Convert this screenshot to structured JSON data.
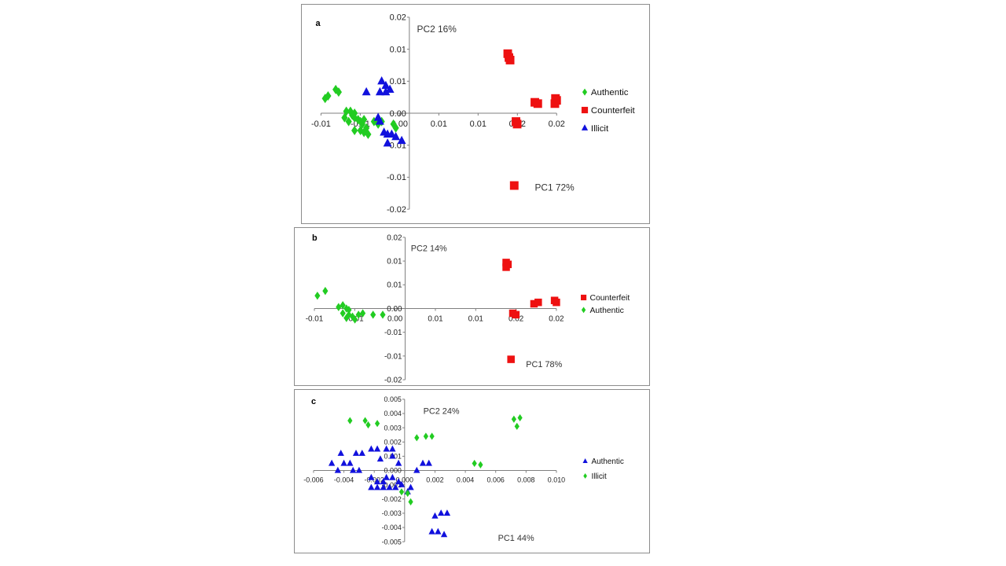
{
  "colors": {
    "Authentic": "#22cc22",
    "Counterfeit": "#ee1111",
    "Illicit": "#1111dd"
  },
  "chart_data": [
    {
      "panel": "a",
      "type": "scatter",
      "pc_x_label": "PC1  72%",
      "pc_y_label": "PC2  16%",
      "xticks": [
        "-0.01",
        "-0.01",
        "0.00",
        "0.01",
        "0.01",
        "0.02",
        "0.02"
      ],
      "yticks": [
        "0.02",
        "0.01",
        "0.01",
        "0.00",
        "-0.01",
        "-0.01",
        "-0.02"
      ],
      "xlim": [
        -0.015,
        0.025
      ],
      "ylim": [
        -0.015,
        0.015
      ],
      "legend_position": "right",
      "series": [
        {
          "name": "Authentic",
          "marker": "diamond",
          "color_key": "Authentic",
          "points": [
            [
              -0.0143,
              0.0023
            ],
            [
              -0.0138,
              0.0027
            ],
            [
              -0.0125,
              0.0037
            ],
            [
              -0.012,
              0.0033
            ],
            [
              -0.0107,
              0.0003
            ],
            [
              -0.01,
              0.0003
            ],
            [
              -0.0097,
              -0.0003
            ],
            [
              -0.0093,
              0.0
            ],
            [
              -0.011,
              -0.0007
            ],
            [
              -0.0103,
              -0.0013
            ],
            [
              -0.0093,
              -0.0007
            ],
            [
              -0.0087,
              -0.001
            ],
            [
              -0.0083,
              -0.0013
            ],
            [
              -0.008,
              -0.0017
            ],
            [
              -0.0077,
              -0.001
            ],
            [
              -0.0073,
              -0.0023
            ],
            [
              -0.0093,
              -0.0027
            ],
            [
              -0.0083,
              -0.0027
            ],
            [
              -0.0077,
              -0.003
            ],
            [
              -0.007,
              -0.0033
            ],
            [
              -0.006,
              -0.0013
            ],
            [
              -0.0053,
              -0.0017
            ],
            [
              -0.0047,
              -0.0013
            ],
            [
              -0.0027,
              -0.0017
            ],
            [
              -0.0023,
              -0.0023
            ]
          ]
        },
        {
          "name": "Counterfeit",
          "marker": "square",
          "color_key": "Counterfeit",
          "points": [
            [
              0.0167,
              0.0093
            ],
            [
              0.0169,
              0.0087
            ],
            [
              0.0171,
              0.0083
            ],
            [
              0.0181,
              -0.0013
            ],
            [
              0.0183,
              -0.0017
            ],
            [
              0.0213,
              0.0017
            ],
            [
              0.0218,
              0.0015
            ],
            [
              0.0248,
              0.0023
            ],
            [
              0.025,
              0.002
            ],
            [
              0.0247,
              0.0015
            ],
            [
              0.0178,
              -0.0113
            ]
          ]
        },
        {
          "name": "Illicit",
          "marker": "triangle",
          "color_key": "Illicit",
          "points": [
            [
              -0.0047,
              0.005
            ],
            [
              -0.004,
              0.0043
            ],
            [
              -0.0033,
              0.0037
            ],
            [
              -0.005,
              0.0033
            ],
            [
              -0.004,
              0.0033
            ],
            [
              -0.0073,
              0.0033
            ],
            [
              -0.0053,
              -0.0007
            ],
            [
              -0.005,
              -0.0013
            ],
            [
              -0.0043,
              -0.003
            ],
            [
              -0.0037,
              -0.0033
            ],
            [
              -0.003,
              -0.0033
            ],
            [
              -0.0037,
              -0.0047
            ],
            [
              -0.0023,
              -0.0037
            ],
            [
              -0.0013,
              -0.0043
            ]
          ]
        }
      ]
    },
    {
      "panel": "b",
      "type": "scatter",
      "pc_x_label": "PC1  78%",
      "pc_y_label": "PC2  14%",
      "xticks": [
        "-0.01",
        "-0.01",
        "0.00",
        "0.01",
        "0.01",
        "0.02",
        "0.02"
      ],
      "yticks": [
        "0.02",
        "0.01",
        "0.01",
        "0.00",
        "-0.01",
        "-0.01",
        "-0.02"
      ],
      "xlim": [
        -0.015,
        0.025
      ],
      "ylim": [
        -0.015,
        0.015
      ],
      "legend_position": "right",
      "series": [
        {
          "name": "Counterfeit",
          "marker": "square",
          "color_key": "Counterfeit",
          "points": [
            [
              0.0167,
              0.0097
            ],
            [
              0.017,
              0.0093
            ],
            [
              0.0167,
              0.0087
            ],
            [
              0.0183,
              -0.0013
            ],
            [
              0.0178,
              -0.001
            ],
            [
              0.0213,
              0.001
            ],
            [
              0.022,
              0.0013
            ],
            [
              0.0247,
              0.0017
            ],
            [
              0.025,
              0.0013
            ],
            [
              0.0175,
              -0.0107
            ]
          ]
        },
        {
          "name": "Authentic",
          "marker": "diamond",
          "color_key": "Authentic",
          "points": [
            [
              -0.0145,
              0.0027
            ],
            [
              -0.0132,
              0.0037
            ],
            [
              -0.011,
              0.0003
            ],
            [
              -0.0103,
              0.0007
            ],
            [
              -0.0097,
              0.0
            ],
            [
              -0.0093,
              -0.0003
            ],
            [
              -0.0103,
              -0.001
            ],
            [
              -0.0093,
              -0.0013
            ],
            [
              -0.0087,
              -0.0017
            ],
            [
              -0.0077,
              -0.0013
            ],
            [
              -0.0097,
              -0.002
            ],
            [
              -0.0083,
              -0.0023
            ],
            [
              -0.007,
              -0.001
            ],
            [
              -0.0053,
              -0.0013
            ],
            [
              -0.0037,
              -0.0013
            ]
          ]
        }
      ]
    },
    {
      "panel": "c",
      "type": "scatter",
      "pc_x_label": "PC1  44%",
      "pc_y_label": "PC2  24%",
      "xticks": [
        "-0.006",
        "-0.004",
        "-0.002",
        "0.000",
        "0.002",
        "0.004",
        "0.006",
        "0.008",
        "0.010"
      ],
      "yticks": [
        "0.005",
        "0.004",
        "0.003",
        "0.002",
        "0.001",
        "0.000",
        "-0.001",
        "-0.002",
        "-0.003",
        "-0.004",
        "-0.005"
      ],
      "xlim": [
        -0.006,
        0.01
      ],
      "ylim": [
        -0.005,
        0.005
      ],
      "legend_position": "right",
      "series": [
        {
          "name": "Authentic",
          "marker": "triangle",
          "color_key": "Illicit",
          "points": [
            [
              -0.0048,
              0.0005
            ],
            [
              -0.0044,
              0.0
            ],
            [
              -0.004,
              0.0005
            ],
            [
              -0.0036,
              0.0005
            ],
            [
              -0.0034,
              0.0
            ],
            [
              -0.003,
              0.0
            ],
            [
              -0.0042,
              0.0012
            ],
            [
              -0.0032,
              0.0012
            ],
            [
              -0.0028,
              0.0012
            ],
            [
              -0.0022,
              0.0015
            ],
            [
              -0.0018,
              0.0015
            ],
            [
              -0.0012,
              0.0015
            ],
            [
              -0.0008,
              0.0015
            ],
            [
              -0.0016,
              0.0008
            ],
            [
              -0.0008,
              0.001
            ],
            [
              -0.0004,
              0.0005
            ],
            [
              -0.0022,
              -0.0005
            ],
            [
              -0.0018,
              -0.0008
            ],
            [
              -0.0014,
              -0.0008
            ],
            [
              -0.0012,
              -0.0005
            ],
            [
              -0.0008,
              -0.0005
            ],
            [
              -0.0004,
              -0.0008
            ],
            [
              -0.0022,
              -0.0012
            ],
            [
              -0.0018,
              -0.0012
            ],
            [
              -0.0014,
              -0.0012
            ],
            [
              -0.001,
              -0.0012
            ],
            [
              -0.0006,
              -0.0012
            ],
            [
              -0.0002,
              -0.001
            ],
            [
              0.0002,
              -0.0015
            ],
            [
              0.0004,
              -0.0012
            ],
            [
              0.0008,
              0.0
            ],
            [
              0.0012,
              0.0005
            ],
            [
              0.0016,
              0.0005
            ],
            [
              0.002,
              -0.0032
            ],
            [
              0.0024,
              -0.003
            ],
            [
              0.0028,
              -0.003
            ],
            [
              0.0018,
              -0.0043
            ],
            [
              0.0022,
              -0.0043
            ],
            [
              0.0026,
              -0.0045
            ]
          ]
        },
        {
          "name": "Illicit",
          "marker": "diamond",
          "color_key": "Authentic",
          "points": [
            [
              -0.0036,
              0.0035
            ],
            [
              -0.0026,
              0.0035
            ],
            [
              -0.0024,
              0.0032
            ],
            [
              -0.0018,
              0.0033
            ],
            [
              0.0008,
              0.0023
            ],
            [
              0.0014,
              0.0024
            ],
            [
              0.0018,
              0.0024
            ],
            [
              0.0046,
              0.0005
            ],
            [
              0.005,
              0.0004
            ],
            [
              0.0072,
              0.0036
            ],
            [
              0.0076,
              0.0037
            ],
            [
              0.0074,
              0.0031
            ],
            [
              -0.0002,
              -0.0015
            ],
            [
              0.0002,
              -0.0016
            ],
            [
              0.0004,
              -0.0022
            ]
          ]
        }
      ]
    }
  ]
}
